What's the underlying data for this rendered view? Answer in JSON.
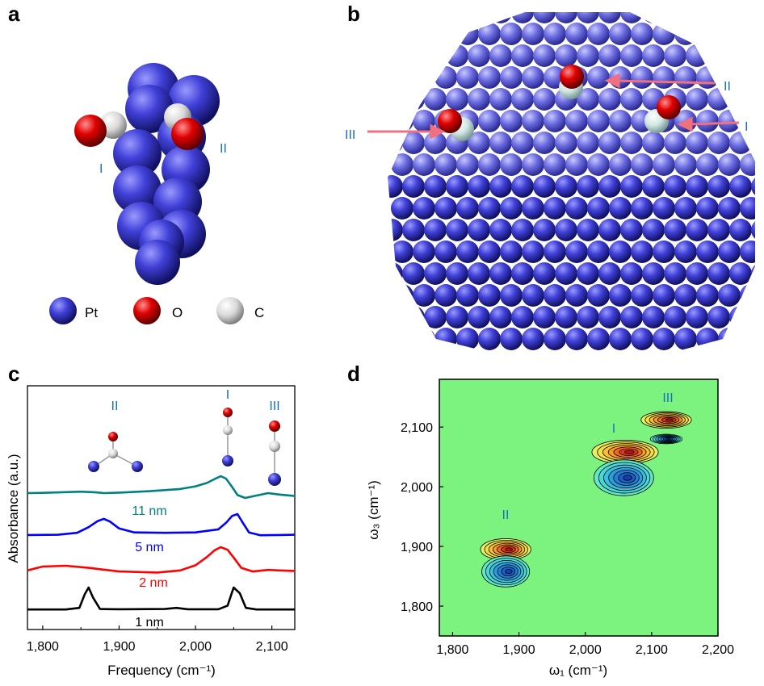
{
  "panels": {
    "a": {
      "letter": "a",
      "site_labels": [
        "I",
        "II"
      ],
      "legend": [
        {
          "element": "Pt",
          "color": "#3b3bd0"
        },
        {
          "element": "O",
          "color": "#e00000"
        },
        {
          "element": "C",
          "color": "#e8e8e8"
        }
      ]
    },
    "b": {
      "letter": "b",
      "site_labels": [
        "II",
        "III",
        "I"
      ]
    },
    "c": {
      "letter": "c",
      "site_labels": [
        "II",
        "I",
        "III"
      ]
    },
    "d": {
      "letter": "d",
      "peak_labels": [
        "I",
        "II",
        "III"
      ]
    }
  },
  "chart_data": [
    {
      "type": "line",
      "panel": "c",
      "xlabel": "Frequency (cm⁻¹)",
      "ylabel": "Absorbance (a.u.)",
      "xlim": [
        1780,
        2130
      ],
      "xticks": [
        1800,
        1900,
        2000,
        2100
      ],
      "xtick_labels": [
        "1,800",
        "1,900",
        "2,000",
        "2,100"
      ],
      "series": [
        {
          "name": "11 nm",
          "color": "#008080",
          "x": [
            1780,
            1800,
            1830,
            1850,
            1870,
            1880,
            1900,
            1940,
            1980,
            2000,
            2015,
            2025,
            2033,
            2040,
            2048,
            2055,
            2065,
            2080,
            2095,
            2110,
            2130
          ],
          "y": [
            0.3,
            0.31,
            0.34,
            0.36,
            0.33,
            0.3,
            0.32,
            0.38,
            0.47,
            0.58,
            0.72,
            0.88,
            1.0,
            0.9,
            0.55,
            0.22,
            0.1,
            0.2,
            0.3,
            0.24,
            0.18
          ]
        },
        {
          "name": "5 nm",
          "color": "#0000ff",
          "x": [
            1780,
            1820,
            1845,
            1860,
            1872,
            1880,
            1888,
            1900,
            1920,
            1960,
            2000,
            2030,
            2040,
            2048,
            2055,
            2062,
            2070,
            2085,
            2110,
            2130
          ],
          "y": [
            0.04,
            0.05,
            0.14,
            0.4,
            0.68,
            0.78,
            0.66,
            0.34,
            0.16,
            0.14,
            0.16,
            0.3,
            0.6,
            0.92,
            1.0,
            0.6,
            0.16,
            0.03,
            0.04,
            0.05
          ],
          "y_peaks_shown": true
        },
        {
          "name": "2 nm",
          "color": "#ff0000",
          "x": [
            1780,
            1800,
            1830,
            1860,
            1900,
            1950,
            1980,
            2000,
            2015,
            2025,
            2033,
            2042,
            2050,
            2060,
            2075,
            2095,
            2110,
            2130
          ],
          "y": [
            0.1,
            0.25,
            0.28,
            0.2,
            0.06,
            0.02,
            0.1,
            0.3,
            0.62,
            0.88,
            1.0,
            0.9,
            0.6,
            0.2,
            0.06,
            0.12,
            0.1,
            0.08
          ]
        },
        {
          "name": "1 nm",
          "color": "#000000",
          "x": [
            1780,
            1830,
            1848,
            1855,
            1860,
            1866,
            1875,
            1900,
            1960,
            1975,
            1990,
            2030,
            2042,
            2050,
            2058,
            2066,
            2080,
            2130
          ],
          "y": [
            0.03,
            0.03,
            0.1,
            0.7,
            1.0,
            0.55,
            0.05,
            0.04,
            0.05,
            0.1,
            0.04,
            0.04,
            0.2,
            1.0,
            0.75,
            0.1,
            0.03,
            0.03
          ]
        }
      ]
    },
    {
      "type": "heatmap",
      "panel": "d",
      "xlabel": "ω₁ (cm⁻¹)",
      "ylabel": "ω₃ (cm⁻¹)",
      "xlim": [
        1780,
        2200
      ],
      "ylim": [
        1750,
        2180
      ],
      "xticks": [
        1800,
        1900,
        2000,
        2100,
        2200
      ],
      "xtick_labels": [
        "1,800",
        "1,900",
        "2,000",
        "2,100",
        "2,200"
      ],
      "yticks": [
        1800,
        1900,
        2000,
        2100
      ],
      "ytick_labels": [
        "1,800",
        "1,900",
        "2,000",
        "2,100"
      ],
      "background_color": "#7cf37f",
      "peaks": [
        {
          "label": "I",
          "x": 2060,
          "y": 2058,
          "sign": "positive",
          "rx": 50,
          "ry": 20
        },
        {
          "label": "I",
          "x": 2058,
          "y": 2015,
          "sign": "negative",
          "rx": 45,
          "ry": 30
        },
        {
          "label": "II",
          "x": 1880,
          "y": 1895,
          "sign": "positive",
          "rx": 38,
          "ry": 18
        },
        {
          "label": "II",
          "x": 1880,
          "y": 1858,
          "sign": "negative",
          "rx": 36,
          "ry": 26
        },
        {
          "label": "III",
          "x": 2122,
          "y": 2112,
          "sign": "positive",
          "rx": 38,
          "ry": 14
        },
        {
          "label": "III",
          "x": 2122,
          "y": 2080,
          "sign": "negative",
          "rx": 24,
          "ry": 8
        }
      ]
    }
  ]
}
